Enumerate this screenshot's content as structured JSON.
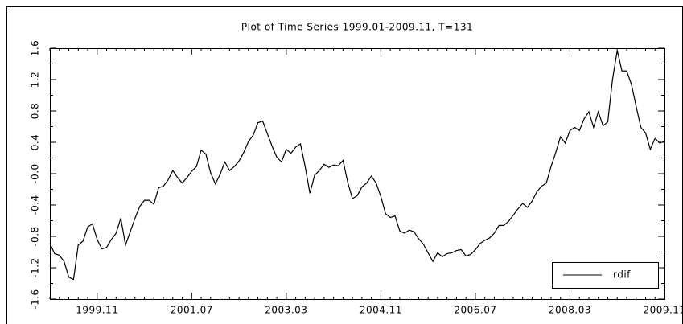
{
  "chart_data": {
    "type": "line",
    "title": "Plot of Time Series 1999.01-2009.11, T=131",
    "categories": [
      null,
      null,
      null,
      null,
      null,
      null,
      null,
      null,
      null,
      null,
      "1999.11",
      null,
      null,
      null,
      null,
      null,
      null,
      null,
      null,
      null,
      null,
      null,
      null,
      null,
      null,
      null,
      null,
      null,
      null,
      null,
      "2001.07",
      null,
      null,
      null,
      null,
      null,
      null,
      null,
      null,
      null,
      null,
      null,
      null,
      null,
      null,
      null,
      null,
      null,
      null,
      null,
      "2003.03",
      null,
      null,
      null,
      null,
      null,
      null,
      null,
      null,
      null,
      null,
      null,
      null,
      null,
      null,
      null,
      null,
      null,
      null,
      null,
      "2004.11",
      null,
      null,
      null,
      null,
      null,
      null,
      null,
      null,
      null,
      null,
      null,
      null,
      null,
      null,
      null,
      null,
      null,
      null,
      null,
      "2006.07",
      null,
      null,
      null,
      null,
      null,
      null,
      null,
      null,
      null,
      null,
      null,
      null,
      null,
      null,
      null,
      null,
      null,
      null,
      null,
      "2008.03",
      null,
      null,
      null,
      null,
      null,
      null,
      null,
      null,
      null,
      null,
      null,
      null,
      null,
      null,
      null,
      null,
      null,
      null,
      null,
      "2009.11"
    ],
    "series": [
      {
        "name": "rdif",
        "color": "#000000",
        "values": [
          -0.89,
          -1.02,
          -1.04,
          -1.12,
          -1.32,
          -1.35,
          -0.91,
          -0.86,
          -0.68,
          -0.64,
          -0.84,
          -0.96,
          -0.94,
          -0.84,
          -0.76,
          -0.57,
          -0.91,
          -0.74,
          -0.57,
          -0.42,
          -0.34,
          -0.34,
          -0.39,
          -0.18,
          -0.16,
          -0.08,
          0.04,
          -0.05,
          -0.12,
          -0.05,
          0.03,
          0.09,
          0.3,
          0.25,
          0.01,
          -0.13,
          -0.01,
          0.15,
          0.04,
          0.09,
          0.16,
          0.27,
          0.41,
          0.49,
          0.65,
          0.67,
          0.51,
          0.35,
          0.21,
          0.15,
          0.31,
          0.26,
          0.34,
          0.38,
          0.09,
          -0.25,
          -0.02,
          0.04,
          0.12,
          0.08,
          0.11,
          0.1,
          0.17,
          -0.11,
          -0.32,
          -0.28,
          -0.17,
          -0.12,
          -0.03,
          -0.12,
          -0.29,
          -0.51,
          -0.56,
          -0.54,
          -0.73,
          -0.76,
          -0.72,
          -0.74,
          -0.83,
          -0.9,
          -1.01,
          -1.12,
          -1.01,
          -1.06,
          -1.02,
          -1.01,
          -0.98,
          -0.97,
          -1.05,
          -1.03,
          -0.97,
          -0.89,
          -0.85,
          -0.82,
          -0.76,
          -0.66,
          -0.66,
          -0.61,
          -0.53,
          -0.45,
          -0.38,
          -0.43,
          -0.35,
          -0.23,
          -0.16,
          -0.12,
          0.09,
          0.27,
          0.47,
          0.39,
          0.55,
          0.59,
          0.55,
          0.7,
          0.79,
          0.59,
          0.79,
          0.61,
          0.66,
          1.2,
          1.57,
          1.31,
          1.31,
          1.14,
          0.86,
          0.59,
          0.52,
          0.31,
          0.45,
          0.39,
          0.41
        ]
      }
    ],
    "ylim": [
      -1.6,
      1.6
    ],
    "yticks": [
      -1.6,
      -1.2,
      -0.8,
      -0.4,
      {
        "value": 0,
        "label": "-0.0"
      },
      0.4,
      0.8,
      1.2,
      1.6
    ],
    "legend": "lower right",
    "grid": false
  }
}
